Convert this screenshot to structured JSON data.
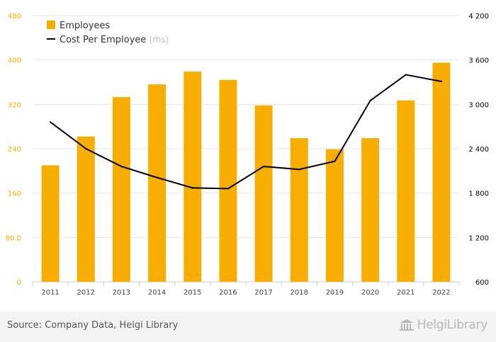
{
  "chart_data": {
    "type": "bar+line",
    "categories": [
      "2011",
      "2012",
      "2013",
      "2014",
      "2015",
      "2016",
      "2017",
      "2018",
      "2019",
      "2020",
      "2021",
      "2022"
    ],
    "series": [
      {
        "name": "Employees",
        "type": "bar",
        "axis": "left",
        "color": "#F7AE00",
        "values": [
          210,
          262,
          333,
          356,
          379,
          364,
          318,
          259,
          239,
          259,
          327,
          395
        ]
      },
      {
        "name": "Cost Per Employee",
        "type": "line",
        "axis": "right",
        "color": "#000000",
        "values": [
          2760,
          2400,
          2160,
          2010,
          1870,
          1860,
          2160,
          2120,
          2230,
          3050,
          3400,
          3310
        ]
      }
    ],
    "legend_rhs_suffix": "(rhs)",
    "y_left": {
      "ylim": [
        0,
        480
      ],
      "ticks": [
        "0",
        "80.0",
        "160",
        "240",
        "320",
        "400",
        "480"
      ],
      "tick_values": [
        0,
        80,
        160,
        240,
        320,
        400,
        480
      ],
      "color": "#F7AE00"
    },
    "y_right": {
      "ylim": [
        600,
        4200
      ],
      "ticks": [
        "600",
        "1 200",
        "1 800",
        "2 400",
        "3 000",
        "3 600",
        "4 200"
      ],
      "tick_values": [
        600,
        1200,
        1800,
        2400,
        3000,
        3600,
        4200
      ],
      "color": "#000000"
    },
    "grid": true,
    "legend_position": "top-left"
  },
  "footer": {
    "source": "Source: Company Data, Helgi Library",
    "brand": "HelgiLibrary"
  }
}
